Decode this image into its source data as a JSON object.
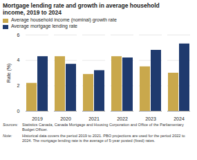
{
  "chart_data": {
    "type": "bar",
    "title": "Mortgage lending rate and growth in average household\nincome, 2019 to 2024",
    "categories": [
      "2019",
      "2020",
      "2021",
      "2022",
      "2023",
      "2024"
    ],
    "series": [
      {
        "name": "Average household income (nominal) growth rate",
        "color": "#C9A84C",
        "values": [
          2.2,
          4.3,
          2.9,
          4.3,
          3.5,
          3.0
        ]
      },
      {
        "name": "Average mortgage lending rate",
        "color": "#1F3A6E",
        "values": [
          4.3,
          3.7,
          3.2,
          4.2,
          4.8,
          5.3
        ]
      }
    ],
    "ylabel": "Rate (%)",
    "ylim": [
      0,
      6
    ],
    "yticks": [
      0,
      2,
      4,
      6
    ],
    "grid": true,
    "legend": "upper left",
    "annotations": [
      "Sources:",
      "Statistics Canada, Canada Mortgage and Housing Corporation and Office of\nthe Parliamentary Budget Officer.",
      "Note:",
      "Historical data covers the period 2019 to 2021. PBO projections are used for\nthe period 2022 to 2024. The mortgage lending rate is the average of 5-year\nposted (fixed) rates."
    ]
  }
}
